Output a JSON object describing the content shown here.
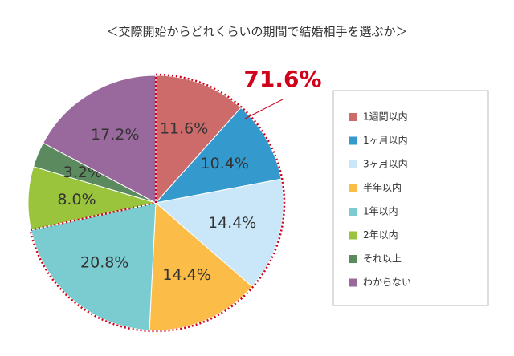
{
  "chart_data": {
    "type": "pie",
    "title": "＜交際開始からどれくらいの期間で結婚相手を選ぶか＞",
    "categories": [
      "1週間以内",
      "1ヶ月以内",
      "3ヶ月以内",
      "半年以内",
      "1年以内",
      "2年以内",
      "それ以上",
      "わからない"
    ],
    "values": [
      11.6,
      10.4,
      14.4,
      14.4,
      20.8,
      8.0,
      3.2,
      17.2
    ],
    "value_labels": [
      "11.6%",
      "10.4%",
      "14.4%",
      "14.4%",
      "20.8%",
      "8.0%",
      "3.2%",
      "17.2%"
    ],
    "colors": [
      "#cd6a6a",
      "#3499cd",
      "#c9e7f8",
      "#fbbd48",
      "#7bccd0",
      "#99c43c",
      "#5b8a5f",
      "#99689d"
    ],
    "annotation": "71.6%",
    "legend": "right"
  }
}
